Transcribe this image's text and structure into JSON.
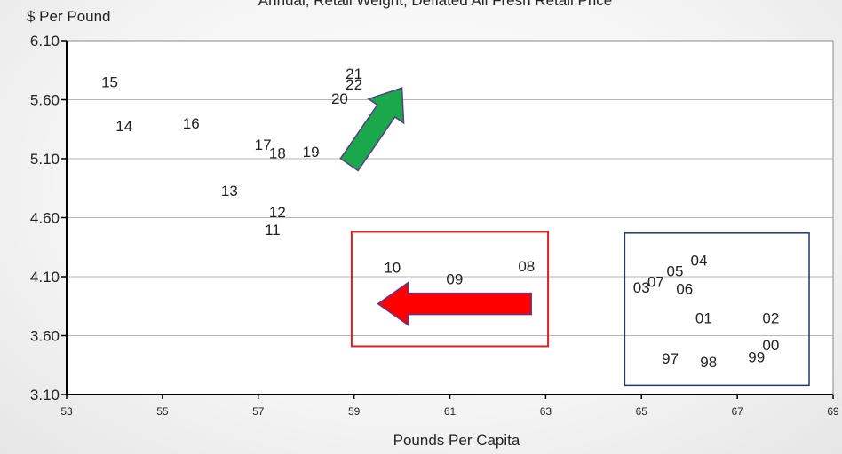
{
  "chart_data": {
    "type": "scatter",
    "title": "Annual, Retail Weight, Deflated All Fresh Retail Price",
    "xlabel": "Pounds Per Capita",
    "ylabel": "$ Per Pound",
    "xlim": [
      53,
      69
    ],
    "ylim": [
      3.1,
      6.1
    ],
    "xticks": [
      53,
      55,
      57,
      59,
      61,
      63,
      65,
      67,
      69
    ],
    "yticks": [
      "3.10",
      "3.60",
      "4.10",
      "4.60",
      "5.10",
      "5.60",
      "6.10"
    ],
    "grid": "horizontal",
    "points": [
      {
        "label": "15",
        "x": 53.9,
        "y": 5.75
      },
      {
        "label": "14",
        "x": 54.2,
        "y": 5.38
      },
      {
        "label": "16",
        "x": 55.6,
        "y": 5.4
      },
      {
        "label": "17",
        "x": 57.1,
        "y": 5.22
      },
      {
        "label": "18",
        "x": 57.4,
        "y": 5.15
      },
      {
        "label": "19",
        "x": 58.1,
        "y": 5.16
      },
      {
        "label": "13",
        "x": 56.4,
        "y": 4.83
      },
      {
        "label": "12",
        "x": 57.4,
        "y": 4.65
      },
      {
        "label": "11",
        "x": 57.3,
        "y": 4.5
      },
      {
        "label": "21",
        "x": 59.0,
        "y": 5.82
      },
      {
        "label": "22",
        "x": 59.0,
        "y": 5.73
      },
      {
        "label": "20",
        "x": 58.7,
        "y": 5.61
      },
      {
        "label": "10",
        "x": 59.8,
        "y": 4.18
      },
      {
        "label": "09",
        "x": 61.1,
        "y": 4.08
      },
      {
        "label": "08",
        "x": 62.6,
        "y": 4.19
      },
      {
        "label": "04",
        "x": 66.2,
        "y": 4.24
      },
      {
        "label": "05",
        "x": 65.7,
        "y": 4.15
      },
      {
        "label": "07",
        "x": 65.3,
        "y": 4.06
      },
      {
        "label": "03",
        "x": 65.0,
        "y": 4.01
      },
      {
        "label": "06",
        "x": 65.9,
        "y": 4.0
      },
      {
        "label": "01",
        "x": 66.3,
        "y": 3.75
      },
      {
        "label": "02",
        "x": 67.7,
        "y": 3.75
      },
      {
        "label": "00",
        "x": 67.7,
        "y": 3.52
      },
      {
        "label": "99",
        "x": 67.4,
        "y": 3.42
      },
      {
        "label": "97",
        "x": 65.6,
        "y": 3.41
      },
      {
        "label": "98",
        "x": 66.4,
        "y": 3.38
      }
    ],
    "annotations": [
      {
        "type": "box",
        "color": "#e02020",
        "x": [
          58.95,
          63.05
        ],
        "y": [
          3.51,
          4.48
        ]
      },
      {
        "type": "box",
        "color": "#1f3a6e",
        "x": [
          64.65,
          68.5
        ],
        "y": [
          3.18,
          4.47
        ]
      },
      {
        "type": "arrow",
        "color": "#ff0000",
        "direction": "left",
        "from": [
          62.7,
          3.87
        ],
        "to": [
          59.5,
          3.87
        ]
      },
      {
        "type": "arrow",
        "color": "#1aa84a",
        "direction": "up-right",
        "from": [
          58.9,
          5.05
        ],
        "to": [
          60.0,
          5.7
        ]
      }
    ]
  }
}
